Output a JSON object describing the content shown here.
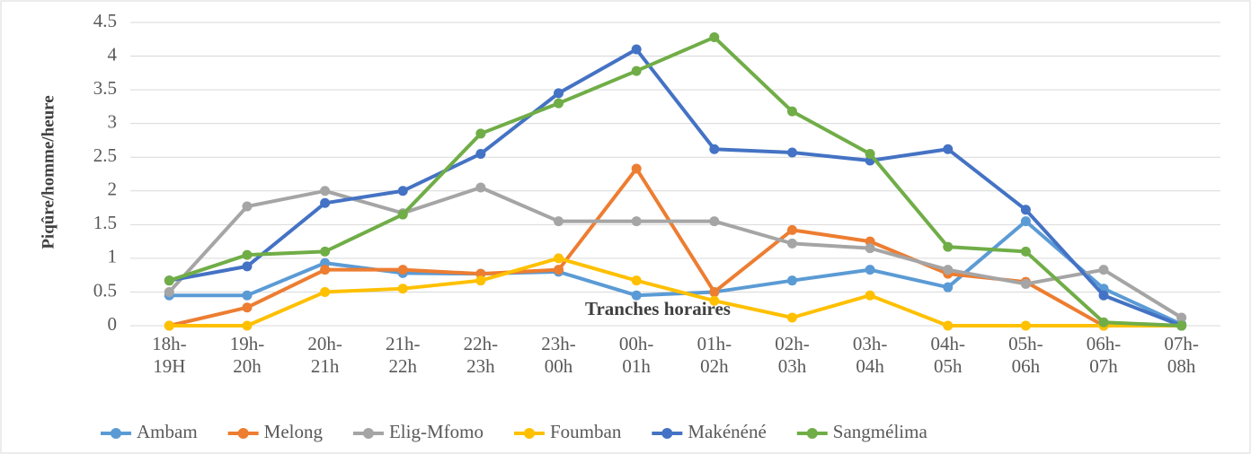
{
  "chart_data": {
    "type": "line",
    "x_label": "Tranches horaires",
    "y_label": "Piqûre/homme/heure",
    "categories": [
      "18h-\n19H",
      "19h-\n20h",
      "20h-\n21h",
      "21h-\n22h",
      "22h-\n23h",
      "23h-\n00h",
      "00h-\n01h",
      "01h-\n02h",
      "02h-\n03h",
      "03h-\n04h",
      "04h-\n05h",
      "05h-\n06h",
      "06h-\n07h",
      "07h-\n08h"
    ],
    "series": [
      {
        "name": "Ambam",
        "color": "#5b9bd5",
        "values": [
          0.45,
          0.45,
          0.93,
          0.78,
          0.77,
          0.8,
          0.45,
          0.5,
          0.67,
          0.83,
          0.57,
          1.55,
          0.55,
          0.02
        ]
      },
      {
        "name": "Melong",
        "color": "#ed7d31",
        "values": [
          0,
          0.27,
          0.83,
          0.83,
          0.77,
          0.83,
          2.33,
          0.5,
          1.42,
          1.25,
          0.77,
          0.65,
          0,
          0
        ]
      },
      {
        "name": "Elig-Mfomo",
        "color": "#a5a5a5",
        "values": [
          0.5,
          1.77,
          2.0,
          1.67,
          2.05,
          1.55,
          1.55,
          1.55,
          1.22,
          1.15,
          0.83,
          0.62,
          0.83,
          0.12
        ]
      },
      {
        "name": "Foumban",
        "color": "#ffc000",
        "values": [
          0,
          0,
          0.5,
          0.55,
          0.67,
          1.0,
          0.67,
          0.37,
          0.12,
          0.45,
          0,
          0,
          0,
          0
        ]
      },
      {
        "name": "Makénéné",
        "color": "#4472c4",
        "values": [
          0.67,
          0.88,
          1.82,
          2.0,
          2.55,
          3.45,
          4.1,
          2.62,
          2.57,
          2.45,
          2.62,
          1.72,
          0.45,
          0
        ]
      },
      {
        "name": "Sangmélima",
        "color": "#70ad47",
        "values": [
          0.67,
          1.05,
          1.1,
          1.65,
          2.85,
          3.3,
          3.78,
          4.28,
          3.18,
          2.55,
          1.17,
          1.1,
          0.05,
          0
        ]
      }
    ],
    "ylim": [
      0,
      4.5
    ],
    "yticks": [
      0,
      0.5,
      1,
      1.5,
      2,
      2.5,
      3,
      3.5,
      4,
      4.5
    ],
    "grid": true,
    "legend": "bottom"
  }
}
